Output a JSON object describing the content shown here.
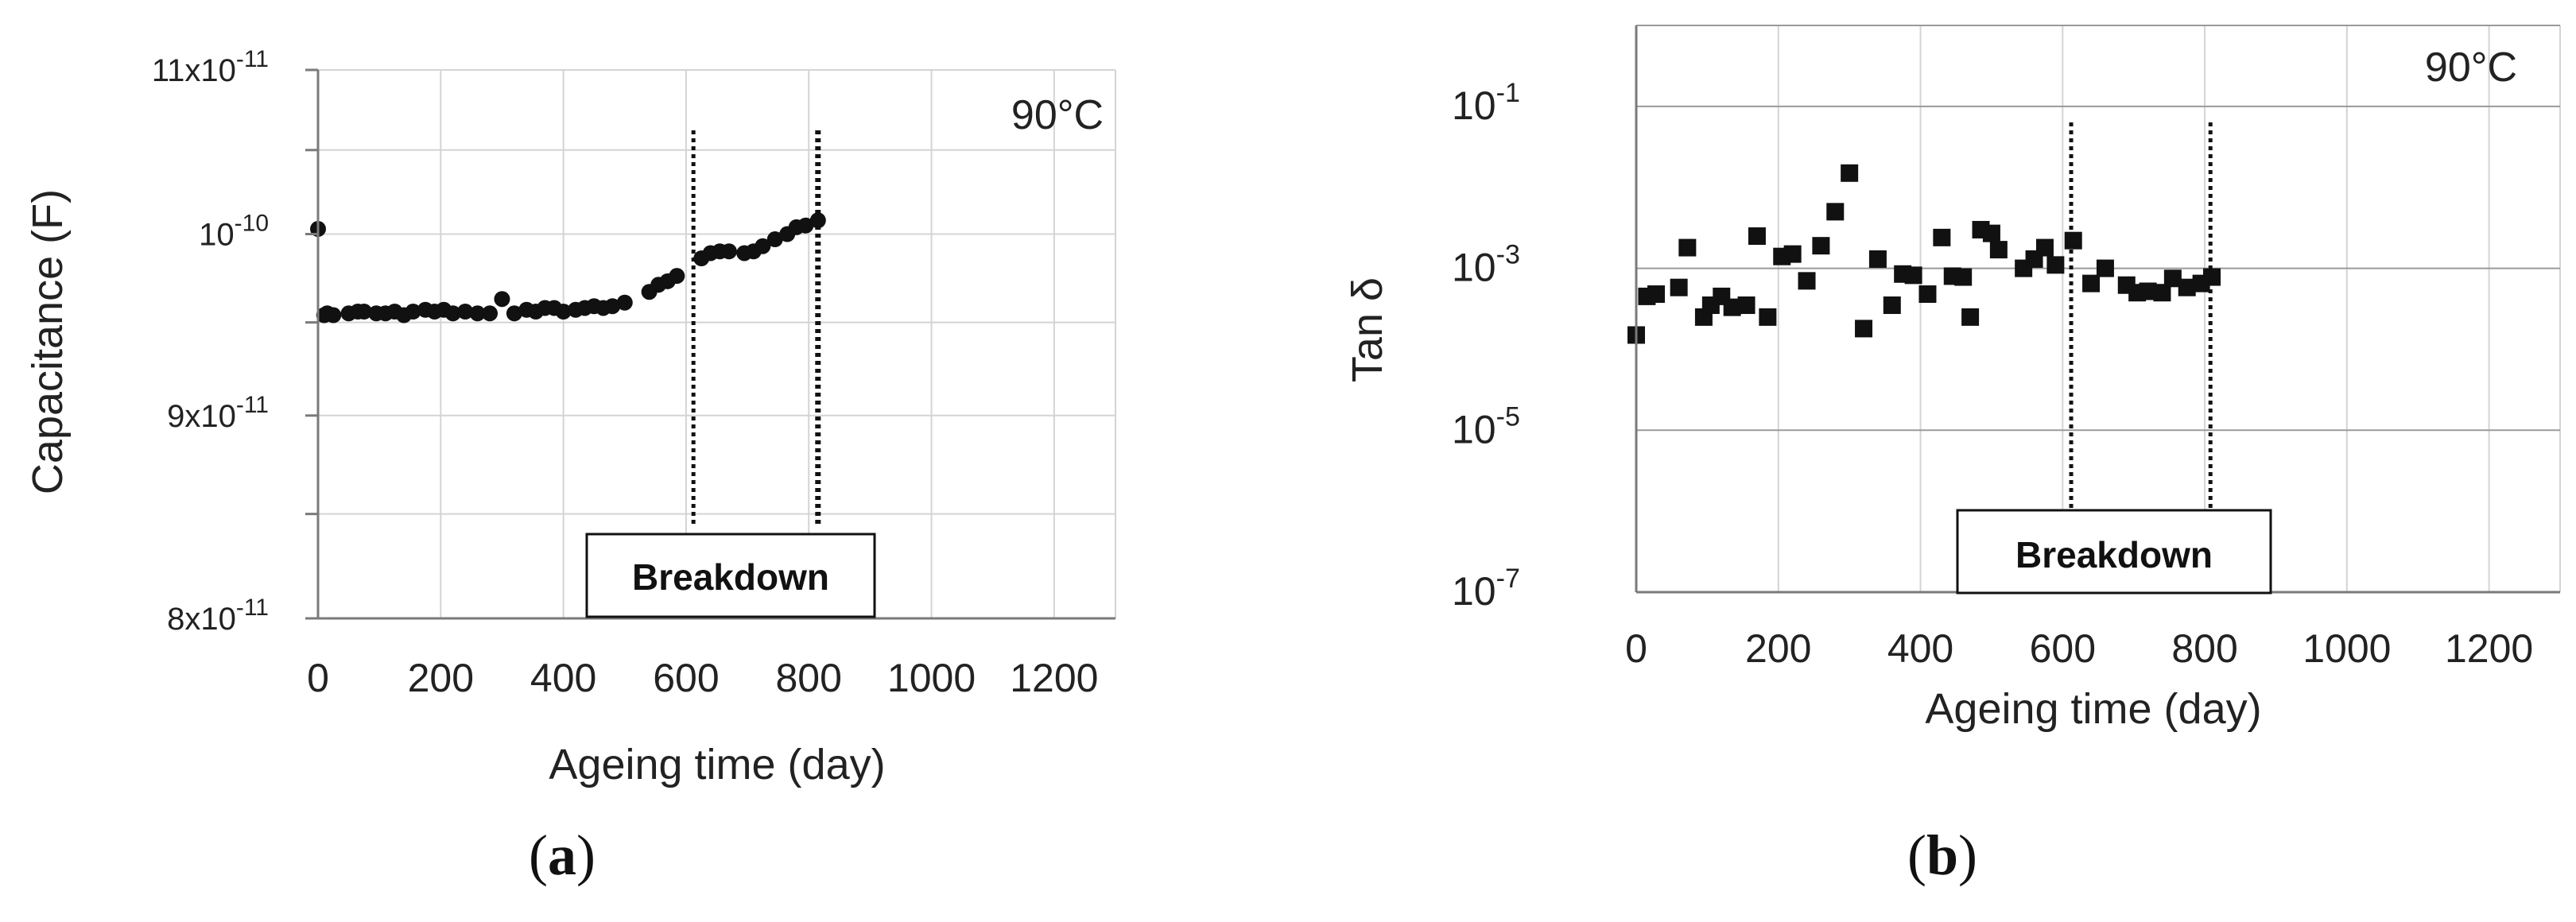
{
  "chart_data": [
    {
      "panel": "a",
      "type": "scatter",
      "xlabel": "Ageing time (day)",
      "ylabel": "Capacitance (F)",
      "xlim": [
        0,
        1300
      ],
      "xticks": [
        0,
        200,
        400,
        600,
        800,
        1000,
        1200
      ],
      "ylim": [
        8e-11,
        1.1e-10
      ],
      "yscale": "log",
      "yticks": [
        {
          "value": 8e-11,
          "mantissa": "8x10",
          "exp": "-11"
        },
        {
          "value": 9e-11,
          "mantissa": "9x10",
          "exp": "-11"
        },
        {
          "value": 1e-10,
          "mantissa": "10",
          "exp": "-10"
        },
        {
          "value": 1.1e-10,
          "mantissa": "11x10",
          "exp": "-11"
        }
      ],
      "annotation": "90°C",
      "breakdown_label": "Breakdown",
      "breakdown_days": [
        612,
        815
      ],
      "grid": true,
      "marker": "circle",
      "points": [
        [
          0,
          1.003e-10
        ],
        [
          10,
          9.54e-11
        ],
        [
          15,
          9.55e-11
        ],
        [
          25,
          9.54e-11
        ],
        [
          50,
          9.55e-11
        ],
        [
          65,
          9.56e-11
        ],
        [
          75,
          9.56e-11
        ],
        [
          95,
          9.55e-11
        ],
        [
          110,
          9.55e-11
        ],
        [
          125,
          9.56e-11
        ],
        [
          140,
          9.54e-11
        ],
        [
          155,
          9.56e-11
        ],
        [
          175,
          9.57e-11
        ],
        [
          190,
          9.56e-11
        ],
        [
          205,
          9.57e-11
        ],
        [
          220,
          9.55e-11
        ],
        [
          240,
          9.56e-11
        ],
        [
          260,
          9.55e-11
        ],
        [
          280,
          9.55e-11
        ],
        [
          300,
          9.63e-11
        ],
        [
          320,
          9.55e-11
        ],
        [
          340,
          9.57e-11
        ],
        [
          355,
          9.56e-11
        ],
        [
          370,
          9.58e-11
        ],
        [
          385,
          9.58e-11
        ],
        [
          400,
          9.56e-11
        ],
        [
          420,
          9.57e-11
        ],
        [
          435,
          9.58e-11
        ],
        [
          450,
          9.59e-11
        ],
        [
          465,
          9.58e-11
        ],
        [
          480,
          9.59e-11
        ],
        [
          500,
          9.61e-11
        ],
        [
          540,
          9.67e-11
        ],
        [
          555,
          9.71e-11
        ],
        [
          570,
          9.73e-11
        ],
        [
          585,
          9.76e-11
        ],
        [
          625,
          9.86e-11
        ],
        [
          640,
          9.89e-11
        ],
        [
          655,
          9.9e-11
        ],
        [
          670,
          9.9e-11
        ],
        [
          695,
          9.89e-11
        ],
        [
          710,
          9.9e-11
        ],
        [
          725,
          9.93e-11
        ],
        [
          745,
          9.97e-11
        ],
        [
          765,
          1e-10
        ],
        [
          780,
          1.004e-10
        ],
        [
          795,
          1.005e-10
        ],
        [
          815,
          1.008e-10
        ]
      ]
    },
    {
      "panel": "b",
      "type": "scatter",
      "xlabel": "Ageing time (day)",
      "ylabel": "Tan δ",
      "xlim": [
        0,
        1300
      ],
      "xticks": [
        0,
        200,
        400,
        600,
        800,
        1000,
        1200
      ],
      "ylim": [
        1e-07,
        1
      ],
      "yscale": "log",
      "yticks": [
        {
          "value": 0.1,
          "mantissa": "10",
          "exp": "-1"
        },
        {
          "value": 0.001,
          "mantissa": "10",
          "exp": "-3"
        },
        {
          "value": 1e-05,
          "mantissa": "10",
          "exp": "-5"
        },
        {
          "value": 1e-07,
          "mantissa": "10",
          "exp": "-7"
        }
      ],
      "annotation": "90°C",
      "breakdown_label": "Breakdown",
      "breakdown_days": [
        612,
        808
      ],
      "grid": true,
      "marker": "square",
      "points": [
        [
          0,
          0.00015
        ],
        [
          15,
          0.00045
        ],
        [
          28,
          0.00048
        ],
        [
          60,
          0.00058
        ],
        [
          72,
          0.0018
        ],
        [
          95,
          0.00025
        ],
        [
          105,
          0.00035
        ],
        [
          120,
          0.00045
        ],
        [
          135,
          0.00033
        ],
        [
          155,
          0.00035
        ],
        [
          170,
          0.0025
        ],
        [
          185,
          0.00025
        ],
        [
          205,
          0.0014
        ],
        [
          220,
          0.0015
        ],
        [
          240,
          0.0007
        ],
        [
          260,
          0.0019
        ],
        [
          280,
          0.005
        ],
        [
          300,
          0.015
        ],
        [
          320,
          0.00018
        ],
        [
          340,
          0.0013
        ],
        [
          360,
          0.00035
        ],
        [
          375,
          0.00085
        ],
        [
          390,
          0.00082
        ],
        [
          410,
          0.00048
        ],
        [
          430,
          0.0024
        ],
        [
          445,
          0.0008
        ],
        [
          460,
          0.00078
        ],
        [
          470,
          0.00025
        ],
        [
          485,
          0.003
        ],
        [
          500,
          0.0027
        ],
        [
          510,
          0.0017
        ],
        [
          545,
          0.001
        ],
        [
          560,
          0.0013
        ],
        [
          575,
          0.0018
        ],
        [
          590,
          0.0011
        ],
        [
          615,
          0.0022
        ],
        [
          640,
          0.00065
        ],
        [
          660,
          0.001
        ],
        [
          690,
          0.00062
        ],
        [
          705,
          0.0005
        ],
        [
          720,
          0.00052
        ],
        [
          740,
          0.0005
        ],
        [
          755,
          0.00075
        ],
        [
          775,
          0.00058
        ],
        [
          795,
          0.00065
        ],
        [
          810,
          0.00078
        ]
      ]
    }
  ],
  "subfigure_labels": [
    "a",
    "b"
  ]
}
